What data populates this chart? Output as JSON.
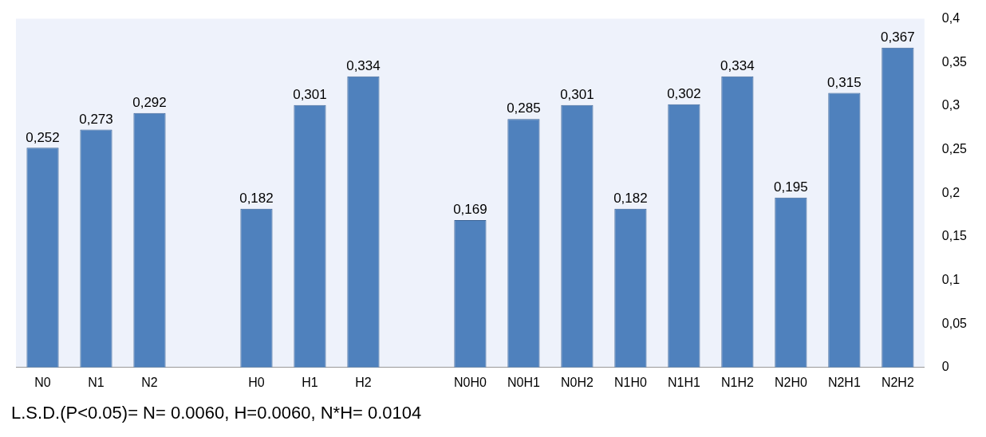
{
  "chart_data": {
    "type": "bar",
    "categories": [
      "N0",
      "N1",
      "N2",
      null,
      "H0",
      "H1",
      "H2",
      null,
      "N0H0",
      "N0H1",
      "N0H2",
      "N1H0",
      "N1H1",
      "N1H2",
      "N2H0",
      "N2H1",
      "N2H2"
    ],
    "values": [
      0.252,
      0.273,
      0.292,
      null,
      0.182,
      0.301,
      0.334,
      null,
      0.169,
      0.285,
      0.301,
      0.182,
      0.302,
      0.334,
      0.195,
      0.315,
      0.367
    ],
    "value_labels": [
      "0,252",
      "0,273",
      "0,292",
      null,
      "0,182",
      "0,301",
      "0,334",
      null,
      "0,169",
      "0,285",
      "0,301",
      "0,182",
      "0,302",
      "0,334",
      "0,195",
      "0,315",
      "0,367"
    ],
    "color": "#4f81bd",
    "ylim": [
      0,
      0.4
    ],
    "yticks": [
      {
        "value": 0,
        "label": "0"
      },
      {
        "value": 0.05,
        "label": "0,05"
      },
      {
        "value": 0.1,
        "label": "0,1"
      },
      {
        "value": 0.15,
        "label": "0,15"
      },
      {
        "value": 0.2,
        "label": "0,2"
      },
      {
        "value": 0.25,
        "label": "0,25"
      },
      {
        "value": 0.3,
        "label": "0,3"
      },
      {
        "value": 0.35,
        "label": "0,35"
      },
      {
        "value": 0.4,
        "label": "0,4"
      }
    ],
    "grid": false,
    "legend": false,
    "annotations": [
      "L.S.D.(P<0.05)= N= 0.0060, H=0.0060, N*H= 0.0104"
    ]
  }
}
